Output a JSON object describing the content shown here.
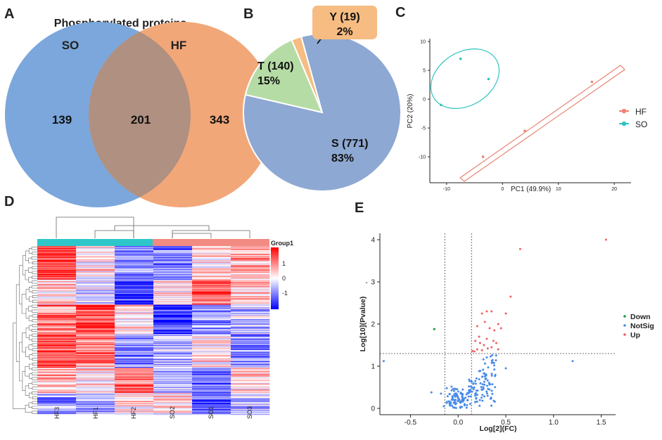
{
  "panels": {
    "A": {
      "letter": "A"
    },
    "B": {
      "letter": "B"
    },
    "C": {
      "letter": "C"
    },
    "D": {
      "letter": "D"
    },
    "E": {
      "letter": "E"
    }
  },
  "chart_data": [
    {
      "panel": "A",
      "type": "venn",
      "title": "Phosphorylated proteins",
      "sets": [
        {
          "name": "SO",
          "only": 139,
          "color": "#7BA7DC"
        },
        {
          "name": "HF",
          "only": 343,
          "color": "#F2A779"
        }
      ],
      "intersection": 201
    },
    {
      "panel": "B",
      "type": "pie",
      "slices": [
        {
          "name": "S",
          "count": 771,
          "label": "S (771)",
          "percent_label": "83%",
          "color": "#8DA8D2"
        },
        {
          "name": "T",
          "count": 140,
          "label": "T (140)",
          "percent_label": "15%",
          "color": "#B6DCA5"
        },
        {
          "name": "Y",
          "count": 19,
          "label": "Y (19)",
          "percent_label": "2%",
          "color": "#F6BC82"
        }
      ]
    },
    {
      "panel": "C",
      "type": "scatter",
      "xlabel": "PC1 (49.9%)",
      "ylabel": "PC2 (20%)",
      "xlim": [
        -13,
        23
      ],
      "ylim": [
        -14.5,
        10.5
      ],
      "xticks": [
        -10,
        0,
        10,
        20
      ],
      "yticks": [
        10,
        5,
        0,
        -5,
        -10
      ],
      "legend": [
        {
          "name": "HF",
          "color": "#F08070"
        },
        {
          "name": "SO",
          "color": "#2EC4C0"
        }
      ],
      "series": [
        {
          "name": "SO",
          "color": "#2EC4C0",
          "x": [
            -11,
            -7.5,
            -2.5
          ],
          "y": [
            -1,
            7,
            3.5
          ]
        },
        {
          "name": "HF",
          "color": "#F08070",
          "x": [
            -3.5,
            4,
            16
          ],
          "y": [
            -10,
            -5.5,
            3
          ]
        }
      ]
    },
    {
      "panel": "D",
      "type": "heatmap",
      "columns": [
        "HF3",
        "HF1",
        "HF2",
        "SO2",
        "SO1",
        "SO3"
      ],
      "groups": [
        {
          "name": "HF",
          "color": "#2EC7C9"
        },
        {
          "name": "SO",
          "color": "#F28B82"
        }
      ],
      "group_label": "Group1",
      "legend_ticks": [
        "1",
        "0",
        "-1"
      ],
      "color_low": "#0000FF",
      "color_mid": "#FFFFFF",
      "color_high": "#FF0000",
      "n_rows": 201,
      "value_range": [
        -2,
        2
      ]
    },
    {
      "panel": "E",
      "type": "scatter",
      "subtype": "volcano",
      "xlabel": "Log[2](FC)",
      "ylabel": "Log[10](Pvalue)",
      "ylabel_mark": "-",
      "xlim": [
        -0.82,
        1.65
      ],
      "ylim": [
        -0.15,
        4.15
      ],
      "xticks": [
        -0.5,
        0.0,
        0.5,
        1.0,
        1.5
      ],
      "xtick_labels": [
        "-0.5",
        "0.0",
        "0.5",
        "1.0",
        "1.5"
      ],
      "yticks": [
        0,
        1,
        2,
        3,
        4
      ],
      "thresholds": {
        "x": [
          -0.14,
          0.14
        ],
        "y": 1.3
      },
      "legend": [
        {
          "name": "Down",
          "color": "#1A9E4A"
        },
        {
          "name": "NotSig",
          "color": "#4A8BE8"
        },
        {
          "name": "Up",
          "color": "#F06060"
        }
      ],
      "up_points": [
        [
          1.55,
          4.0
        ],
        [
          0.65,
          3.78
        ],
        [
          0.55,
          2.65
        ],
        [
          0.5,
          2.25
        ],
        [
          0.42,
          2.0
        ],
        [
          0.3,
          2.3
        ],
        [
          0.25,
          2.25
        ],
        [
          0.35,
          2.3
        ],
        [
          0.28,
          2.05
        ],
        [
          0.2,
          1.95
        ],
        [
          0.33,
          1.9
        ],
        [
          0.38,
          1.85
        ],
        [
          0.45,
          1.9
        ],
        [
          0.22,
          1.7
        ],
        [
          0.3,
          1.65
        ],
        [
          0.18,
          1.6
        ],
        [
          0.4,
          1.55
        ],
        [
          0.27,
          1.5
        ],
        [
          0.35,
          1.45
        ],
        [
          0.2,
          1.4
        ],
        [
          0.25,
          1.38
        ],
        [
          0.31,
          1.42
        ],
        [
          0.42,
          1.4
        ],
        [
          0.17,
          1.35
        ],
        [
          0.23,
          1.55
        ],
        [
          0.15,
          1.36
        ],
        [
          0.37,
          1.6
        ]
      ],
      "down_points": [
        [
          -0.25,
          1.88
        ]
      ],
      "notsig_points": [
        [
          -0.78,
          1.12
        ],
        [
          1.2,
          1.12
        ],
        [
          0.5,
          0.95
        ],
        [
          -0.28,
          0.38
        ],
        [
          -0.18,
          0.35
        ],
        [
          -0.12,
          0.15
        ],
        [
          -0.15,
          0.05
        ],
        [
          -0.05,
          0.02
        ]
      ]
    }
  ]
}
